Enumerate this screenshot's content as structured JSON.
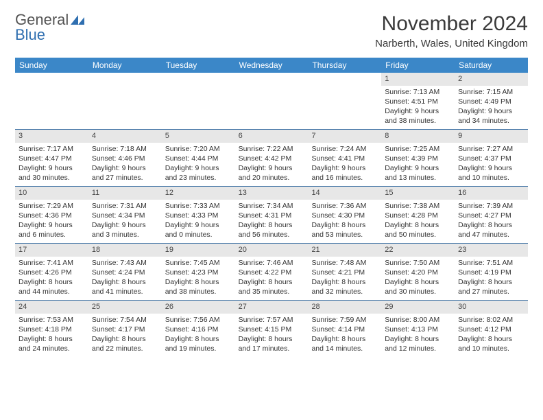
{
  "brand": {
    "word1": "General",
    "word2": "Blue"
  },
  "title": "November 2024",
  "location": "Narberth, Wales, United Kingdom",
  "weekdays": [
    "Sunday",
    "Monday",
    "Tuesday",
    "Wednesday",
    "Thursday",
    "Friday",
    "Saturday"
  ],
  "colors": {
    "header_bar": "#3b87c8",
    "week_divider": "#3b6fa3",
    "daynum_bg": "#e7e7e7",
    "logo_blue": "#2f6fb0",
    "text": "#333333"
  },
  "weeks": [
    [
      {
        "empty": true
      },
      {
        "empty": true
      },
      {
        "empty": true
      },
      {
        "empty": true
      },
      {
        "empty": true
      },
      {
        "n": "1",
        "sunrise": "7:13 AM",
        "sunset": "4:51 PM",
        "daylight": "9 hours and 38 minutes."
      },
      {
        "n": "2",
        "sunrise": "7:15 AM",
        "sunset": "4:49 PM",
        "daylight": "9 hours and 34 minutes."
      }
    ],
    [
      {
        "n": "3",
        "sunrise": "7:17 AM",
        "sunset": "4:47 PM",
        "daylight": "9 hours and 30 minutes."
      },
      {
        "n": "4",
        "sunrise": "7:18 AM",
        "sunset": "4:46 PM",
        "daylight": "9 hours and 27 minutes."
      },
      {
        "n": "5",
        "sunrise": "7:20 AM",
        "sunset": "4:44 PM",
        "daylight": "9 hours and 23 minutes."
      },
      {
        "n": "6",
        "sunrise": "7:22 AM",
        "sunset": "4:42 PM",
        "daylight": "9 hours and 20 minutes."
      },
      {
        "n": "7",
        "sunrise": "7:24 AM",
        "sunset": "4:41 PM",
        "daylight": "9 hours and 16 minutes."
      },
      {
        "n": "8",
        "sunrise": "7:25 AM",
        "sunset": "4:39 PM",
        "daylight": "9 hours and 13 minutes."
      },
      {
        "n": "9",
        "sunrise": "7:27 AM",
        "sunset": "4:37 PM",
        "daylight": "9 hours and 10 minutes."
      }
    ],
    [
      {
        "n": "10",
        "sunrise": "7:29 AM",
        "sunset": "4:36 PM",
        "daylight": "9 hours and 6 minutes."
      },
      {
        "n": "11",
        "sunrise": "7:31 AM",
        "sunset": "4:34 PM",
        "daylight": "9 hours and 3 minutes."
      },
      {
        "n": "12",
        "sunrise": "7:33 AM",
        "sunset": "4:33 PM",
        "daylight": "9 hours and 0 minutes."
      },
      {
        "n": "13",
        "sunrise": "7:34 AM",
        "sunset": "4:31 PM",
        "daylight": "8 hours and 56 minutes."
      },
      {
        "n": "14",
        "sunrise": "7:36 AM",
        "sunset": "4:30 PM",
        "daylight": "8 hours and 53 minutes."
      },
      {
        "n": "15",
        "sunrise": "7:38 AM",
        "sunset": "4:28 PM",
        "daylight": "8 hours and 50 minutes."
      },
      {
        "n": "16",
        "sunrise": "7:39 AM",
        "sunset": "4:27 PM",
        "daylight": "8 hours and 47 minutes."
      }
    ],
    [
      {
        "n": "17",
        "sunrise": "7:41 AM",
        "sunset": "4:26 PM",
        "daylight": "8 hours and 44 minutes."
      },
      {
        "n": "18",
        "sunrise": "7:43 AM",
        "sunset": "4:24 PM",
        "daylight": "8 hours and 41 minutes."
      },
      {
        "n": "19",
        "sunrise": "7:45 AM",
        "sunset": "4:23 PM",
        "daylight": "8 hours and 38 minutes."
      },
      {
        "n": "20",
        "sunrise": "7:46 AM",
        "sunset": "4:22 PM",
        "daylight": "8 hours and 35 minutes."
      },
      {
        "n": "21",
        "sunrise": "7:48 AM",
        "sunset": "4:21 PM",
        "daylight": "8 hours and 32 minutes."
      },
      {
        "n": "22",
        "sunrise": "7:50 AM",
        "sunset": "4:20 PM",
        "daylight": "8 hours and 30 minutes."
      },
      {
        "n": "23",
        "sunrise": "7:51 AM",
        "sunset": "4:19 PM",
        "daylight": "8 hours and 27 minutes."
      }
    ],
    [
      {
        "n": "24",
        "sunrise": "7:53 AM",
        "sunset": "4:18 PM",
        "daylight": "8 hours and 24 minutes."
      },
      {
        "n": "25",
        "sunrise": "7:54 AM",
        "sunset": "4:17 PM",
        "daylight": "8 hours and 22 minutes."
      },
      {
        "n": "26",
        "sunrise": "7:56 AM",
        "sunset": "4:16 PM",
        "daylight": "8 hours and 19 minutes."
      },
      {
        "n": "27",
        "sunrise": "7:57 AM",
        "sunset": "4:15 PM",
        "daylight": "8 hours and 17 minutes."
      },
      {
        "n": "28",
        "sunrise": "7:59 AM",
        "sunset": "4:14 PM",
        "daylight": "8 hours and 14 minutes."
      },
      {
        "n": "29",
        "sunrise": "8:00 AM",
        "sunset": "4:13 PM",
        "daylight": "8 hours and 12 minutes."
      },
      {
        "n": "30",
        "sunrise": "8:02 AM",
        "sunset": "4:12 PM",
        "daylight": "8 hours and 10 minutes."
      }
    ]
  ],
  "labels": {
    "sunrise": "Sunrise: ",
    "sunset": "Sunset: ",
    "daylight": "Daylight: "
  }
}
